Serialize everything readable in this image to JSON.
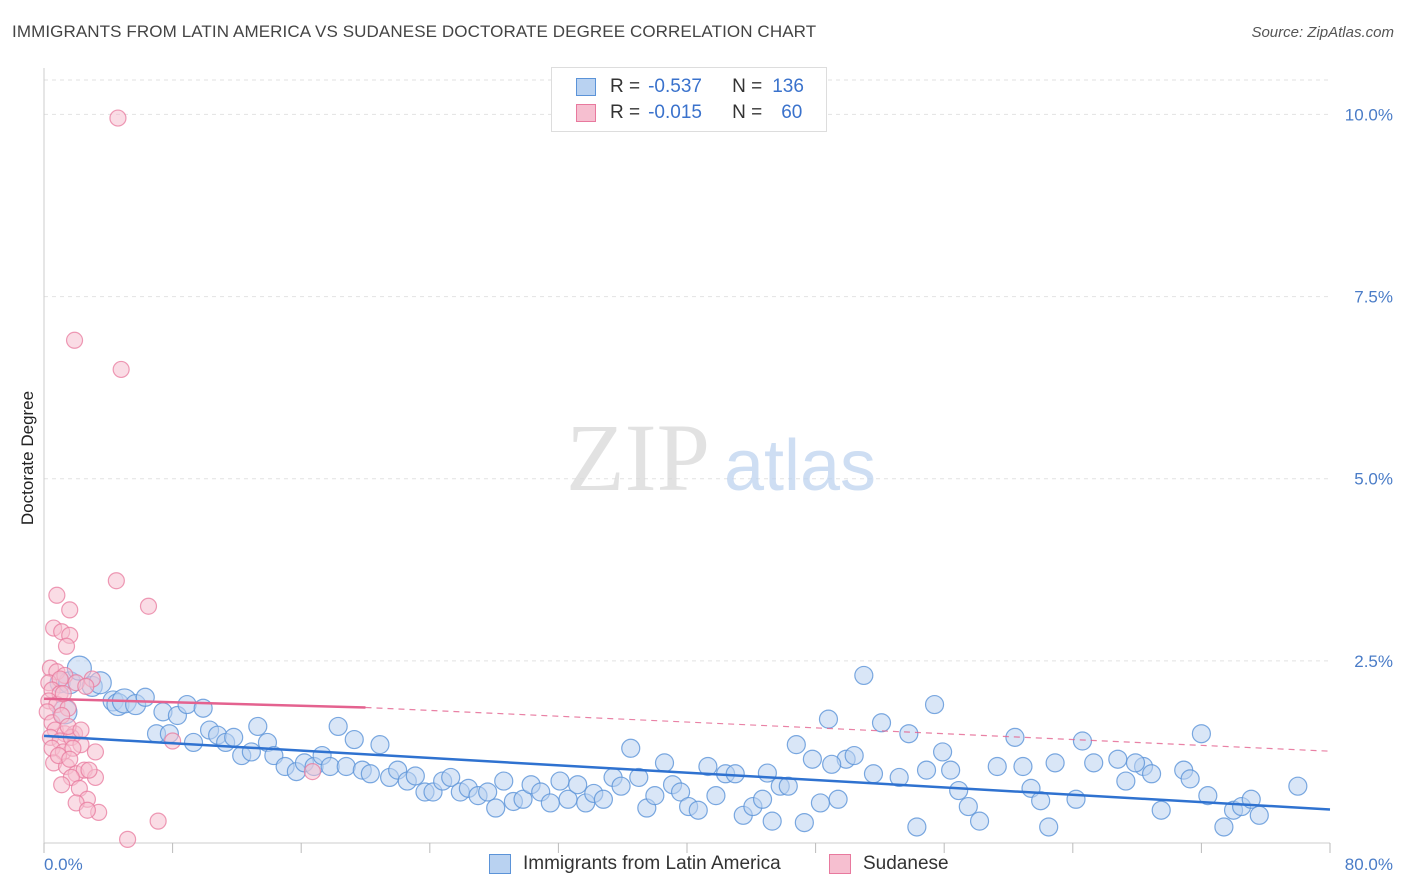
{
  "header": {
    "title": "IMMIGRANTS FROM LATIN AMERICA VS SUDANESE DOCTORATE DEGREE CORRELATION CHART",
    "source": "Source: ZipAtlas.com"
  },
  "watermark": {
    "zip": "ZIP",
    "atlas": "atlas"
  },
  "legend": {
    "rows": [
      {
        "r_label": "R =",
        "r_value": "-0.537",
        "n_label": "N =",
        "n_value": "136"
      },
      {
        "r_label": "R =",
        "r_value": "-0.015",
        "n_label": "N =",
        "n_value": "60"
      }
    ]
  },
  "colors": {
    "blue": "#5b93d8",
    "blue_fill": "#b9d2f1",
    "blue_line": "#2f72d0",
    "pink": "#e8799e",
    "pink_fill": "#f6bfd0",
    "pink_line": "#e4628f",
    "grid": "#e2e2e2",
    "axis_text": "#4a7cc7"
  },
  "chart_data": {
    "type": "scatter",
    "title": "IMMIGRANTS FROM LATIN AMERICA VS SUDANESE DOCTORATE DEGREE CORRELATION CHART",
    "xlabel": "",
    "ylabel": "Doctorate Degree",
    "xlim": [
      0,
      80
    ],
    "ylim": [
      0,
      10.5
    ],
    "x_tick_labels": [
      "0.0%",
      "80.0%"
    ],
    "y_ticks": [
      2.5,
      5.0,
      7.5,
      10.0
    ],
    "y_tick_labels": [
      "2.5%",
      "5.0%",
      "7.5%",
      "10.0%"
    ],
    "legend_position": "top-center",
    "series": [
      {
        "name": "Immigrants from Latin America",
        "R": -0.537,
        "N": 136,
        "trend": {
          "x": [
            0,
            80
          ],
          "y": [
            1.47,
            0.46
          ]
        },
        "points": [
          [
            1.0,
            2.2
          ],
          [
            1.6,
            2.2
          ],
          [
            2.2,
            2.4
          ],
          [
            3.0,
            2.15
          ],
          [
            3.5,
            2.2
          ],
          [
            1.3,
            1.8
          ],
          [
            4.3,
            1.95
          ],
          [
            4.6,
            1.9
          ],
          [
            5.0,
            1.95
          ],
          [
            5.7,
            1.9
          ],
          [
            6.3,
            2.0
          ],
          [
            7.0,
            1.5
          ],
          [
            7.4,
            1.8
          ],
          [
            7.8,
            1.5
          ],
          [
            8.3,
            1.75
          ],
          [
            8.9,
            1.9
          ],
          [
            9.3,
            1.38
          ],
          [
            9.9,
            1.85
          ],
          [
            10.3,
            1.55
          ],
          [
            10.8,
            1.48
          ],
          [
            11.3,
            1.38
          ],
          [
            11.8,
            1.45
          ],
          [
            12.3,
            1.2
          ],
          [
            12.9,
            1.25
          ],
          [
            13.3,
            1.6
          ],
          [
            13.9,
            1.38
          ],
          [
            14.3,
            1.2
          ],
          [
            15.0,
            1.05
          ],
          [
            15.7,
            0.98
          ],
          [
            16.2,
            1.1
          ],
          [
            16.8,
            1.05
          ],
          [
            17.3,
            1.2
          ],
          [
            17.8,
            1.05
          ],
          [
            18.3,
            1.6
          ],
          [
            18.8,
            1.05
          ],
          [
            19.3,
            1.42
          ],
          [
            19.8,
            1.0
          ],
          [
            20.3,
            0.95
          ],
          [
            20.9,
            1.35
          ],
          [
            21.5,
            0.9
          ],
          [
            22.0,
            1.0
          ],
          [
            22.6,
            0.85
          ],
          [
            23.1,
            0.92
          ],
          [
            23.7,
            0.7
          ],
          [
            24.2,
            0.7
          ],
          [
            24.8,
            0.85
          ],
          [
            25.3,
            0.9
          ],
          [
            25.9,
            0.7
          ],
          [
            26.4,
            0.75
          ],
          [
            27.0,
            0.65
          ],
          [
            27.6,
            0.7
          ],
          [
            28.1,
            0.48
          ],
          [
            28.6,
            0.85
          ],
          [
            29.2,
            0.57
          ],
          [
            29.8,
            0.6
          ],
          [
            30.3,
            0.8
          ],
          [
            30.9,
            0.7
          ],
          [
            31.5,
            0.55
          ],
          [
            32.1,
            0.85
          ],
          [
            32.6,
            0.6
          ],
          [
            33.2,
            0.8
          ],
          [
            33.7,
            0.55
          ],
          [
            34.2,
            0.68
          ],
          [
            34.8,
            0.6
          ],
          [
            35.4,
            0.9
          ],
          [
            35.9,
            0.78
          ],
          [
            36.5,
            1.3
          ],
          [
            37.0,
            0.9
          ],
          [
            37.5,
            0.48
          ],
          [
            38.0,
            0.65
          ],
          [
            38.6,
            1.1
          ],
          [
            39.1,
            0.8
          ],
          [
            39.6,
            0.7
          ],
          [
            40.1,
            0.5
          ],
          [
            40.7,
            0.45
          ],
          [
            41.3,
            1.05
          ],
          [
            41.8,
            0.65
          ],
          [
            42.4,
            0.95
          ],
          [
            43.0,
            0.95
          ],
          [
            43.5,
            0.38
          ],
          [
            44.1,
            0.5
          ],
          [
            44.7,
            0.6
          ],
          [
            45.3,
            0.3
          ],
          [
            45.8,
            0.78
          ],
          [
            46.3,
            0.78
          ],
          [
            46.8,
            1.35
          ],
          [
            47.3,
            0.28
          ],
          [
            47.8,
            1.15
          ],
          [
            48.3,
            0.55
          ],
          [
            48.8,
            1.7
          ],
          [
            49.4,
            0.6
          ],
          [
            49.9,
            1.15
          ],
          [
            50.4,
            1.2
          ],
          [
            51.0,
            2.3
          ],
          [
            51.6,
            0.95
          ],
          [
            52.1,
            1.65
          ],
          [
            53.2,
            0.9
          ],
          [
            54.3,
            0.22
          ],
          [
            54.9,
            1.0
          ],
          [
            55.4,
            1.9
          ],
          [
            55.9,
            1.25
          ],
          [
            56.4,
            1.0
          ],
          [
            58.2,
            0.3
          ],
          [
            59.3,
            1.05
          ],
          [
            60.4,
            1.45
          ],
          [
            60.9,
            1.05
          ],
          [
            61.4,
            0.75
          ],
          [
            62.5,
            0.22
          ],
          [
            62.9,
            1.1
          ],
          [
            64.2,
            0.6
          ],
          [
            65.3,
            1.1
          ],
          [
            66.8,
            1.15
          ],
          [
            67.3,
            0.85
          ],
          [
            68.4,
            1.05
          ],
          [
            68.9,
            0.95
          ],
          [
            69.5,
            0.45
          ],
          [
            70.9,
            1.0
          ],
          [
            72.4,
            0.65
          ],
          [
            74.0,
            0.45
          ],
          [
            74.5,
            0.5
          ],
          [
            75.1,
            0.6
          ],
          [
            75.6,
            0.38
          ],
          [
            78.0,
            0.78
          ],
          [
            72.0,
            1.5
          ],
          [
            64.6,
            1.4
          ],
          [
            57.5,
            0.5
          ],
          [
            53.8,
            1.5
          ],
          [
            67.9,
            1.1
          ],
          [
            71.3,
            0.88
          ],
          [
            73.4,
            0.22
          ],
          [
            62.0,
            0.58
          ],
          [
            56.9,
            0.72
          ],
          [
            49.0,
            1.08
          ],
          [
            45.0,
            0.96
          ]
        ]
      },
      {
        "name": "Sudanese",
        "R": -0.015,
        "N": 60,
        "trend_solid": {
          "x": [
            0,
            20
          ],
          "y": [
            1.98,
            1.86
          ]
        },
        "trend_dashed": {
          "x": [
            20,
            80
          ],
          "y": [
            1.86,
            1.26
          ]
        },
        "points": [
          [
            4.6,
            9.95
          ],
          [
            1.9,
            6.9
          ],
          [
            4.8,
            6.5
          ],
          [
            4.5,
            3.6
          ],
          [
            0.8,
            3.4
          ],
          [
            6.5,
            3.25
          ],
          [
            1.6,
            3.2
          ],
          [
            0.6,
            2.95
          ],
          [
            1.1,
            2.9
          ],
          [
            1.6,
            2.85
          ],
          [
            1.4,
            2.7
          ],
          [
            0.4,
            2.4
          ],
          [
            0.8,
            2.35
          ],
          [
            1.3,
            2.3
          ],
          [
            0.3,
            2.2
          ],
          [
            1.0,
            2.25
          ],
          [
            3.0,
            2.25
          ],
          [
            0.5,
            2.1
          ],
          [
            1.0,
            2.05
          ],
          [
            2.0,
            2.2
          ],
          [
            0.3,
            1.95
          ],
          [
            0.8,
            1.9
          ],
          [
            1.5,
            1.85
          ],
          [
            0.2,
            1.8
          ],
          [
            0.5,
            1.65
          ],
          [
            1.1,
            1.75
          ],
          [
            0.7,
            1.55
          ],
          [
            1.3,
            1.5
          ],
          [
            1.9,
            1.5
          ],
          [
            0.4,
            1.45
          ],
          [
            1.0,
            1.4
          ],
          [
            1.7,
            1.45
          ],
          [
            2.3,
            1.35
          ],
          [
            0.5,
            1.3
          ],
          [
            1.2,
            1.25
          ],
          [
            1.8,
            1.3
          ],
          [
            3.2,
            1.25
          ],
          [
            0.6,
            1.1
          ],
          [
            1.4,
            1.05
          ],
          [
            2.0,
            0.95
          ],
          [
            2.5,
            1.0
          ],
          [
            1.7,
            0.9
          ],
          [
            3.2,
            0.9
          ],
          [
            1.1,
            0.8
          ],
          [
            2.2,
            0.75
          ],
          [
            2.7,
            0.6
          ],
          [
            2.0,
            0.55
          ],
          [
            3.4,
            0.42
          ],
          [
            2.7,
            0.45
          ],
          [
            7.1,
            0.3
          ],
          [
            5.2,
            0.05
          ],
          [
            1.5,
            1.6
          ],
          [
            2.6,
            2.15
          ],
          [
            8.0,
            1.4
          ],
          [
            1.2,
            2.05
          ],
          [
            2.3,
            1.55
          ],
          [
            0.9,
            1.2
          ],
          [
            1.6,
            1.15
          ],
          [
            16.7,
            0.98
          ],
          [
            2.8,
            1.0
          ]
        ]
      }
    ]
  },
  "bottom_legend": [
    {
      "label": "Immigrants from Latin America"
    },
    {
      "label": "Sudanese"
    }
  ]
}
